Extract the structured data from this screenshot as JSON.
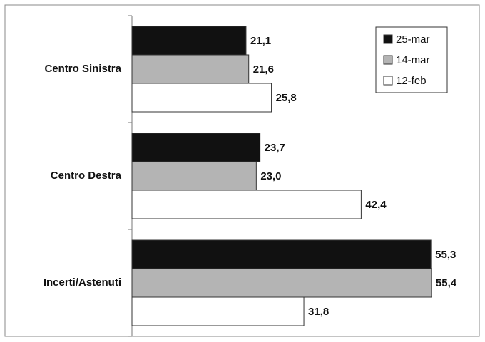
{
  "chart_data": {
    "type": "bar",
    "categories": [
      "Centro Sinistra",
      "Centro Destra",
      "Incerti/Astenuti"
    ],
    "series": [
      {
        "name": "25-mar",
        "color": "#111111",
        "values": [
          21.1,
          23.7,
          55.3
        ],
        "value_labels": [
          "21,1",
          "23,7",
          "55,3"
        ]
      },
      {
        "name": "14-mar",
        "color": "#b4b4b4",
        "values": [
          21.6,
          23.0,
          55.4
        ],
        "value_labels": [
          "21,6",
          "23,0",
          "55,4"
        ]
      },
      {
        "name": "12-feb",
        "color": "#ffffff",
        "values": [
          25.8,
          42.4,
          31.8
        ],
        "value_labels": [
          "25,8",
          "42,4",
          "31,8"
        ]
      }
    ],
    "legend": "upper right"
  }
}
